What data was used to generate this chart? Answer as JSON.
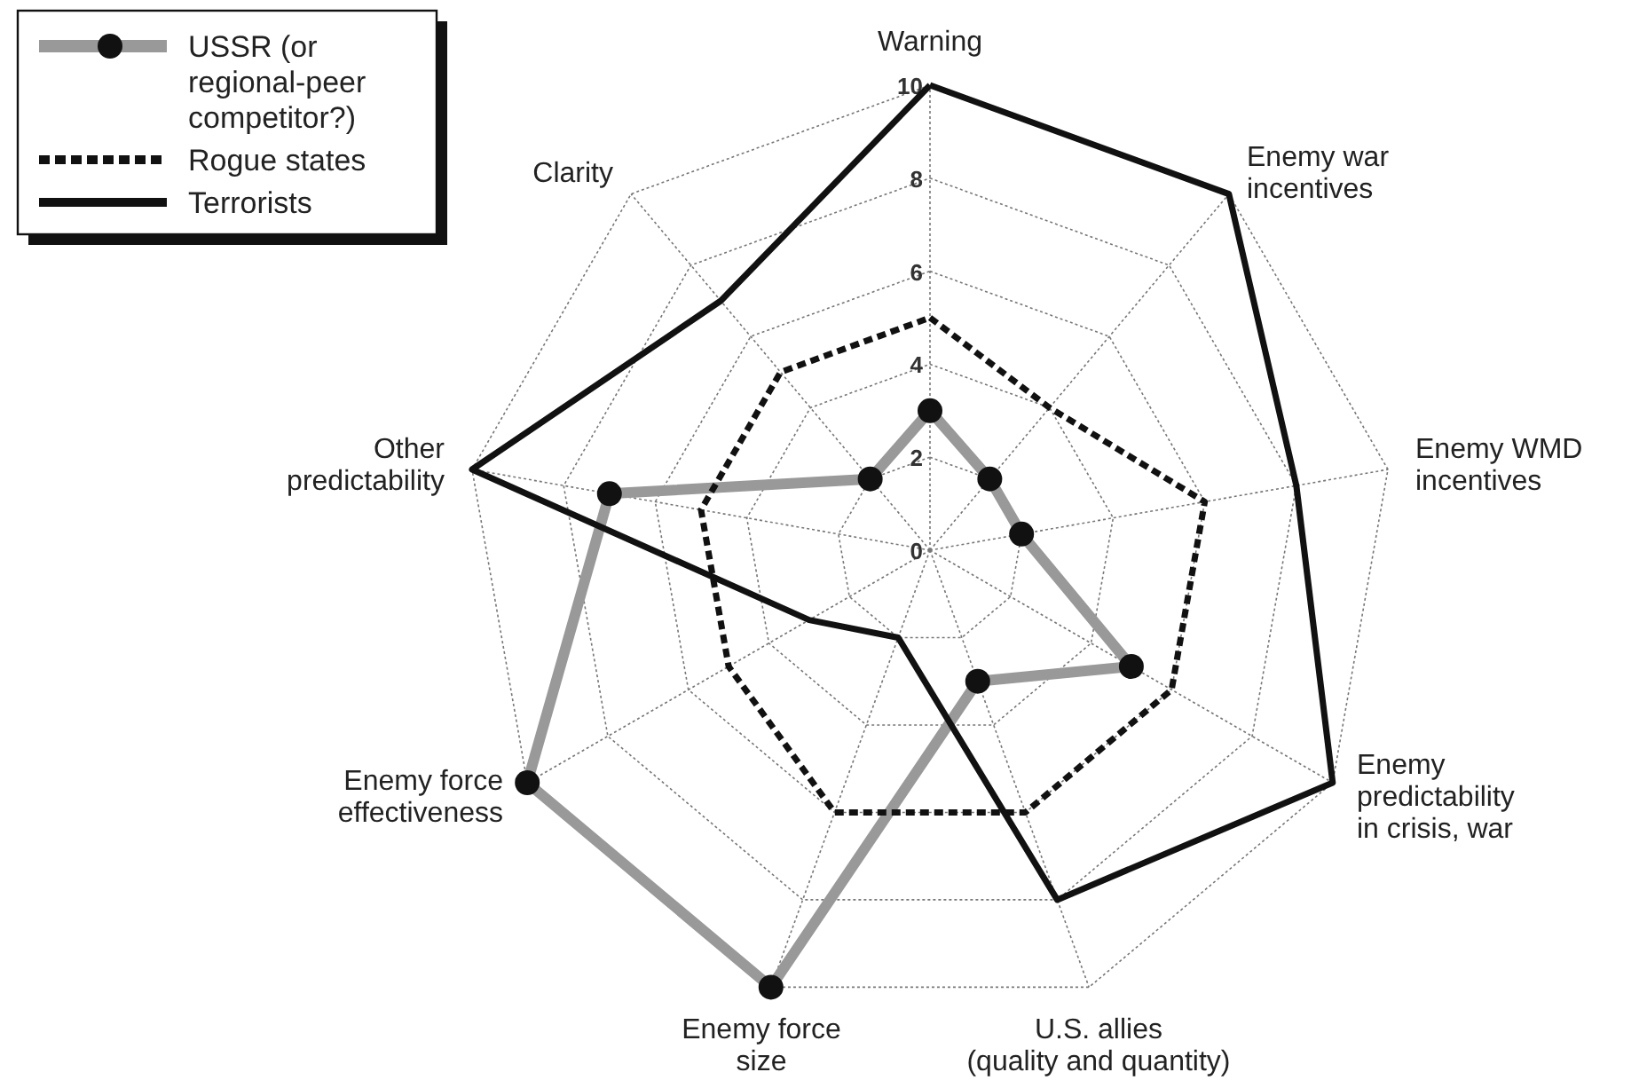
{
  "chart_data": {
    "type": "radar",
    "categories": [
      "Warning",
      "Enemy war incentives",
      "Enemy WMD incentives",
      "Enemy predictability in crisis, war",
      "U.S. allies (quality and quantity)",
      "Enemy force size",
      "Enemy force effectiveness",
      "Other predictability",
      "Clarity"
    ],
    "series": [
      {
        "name": "USSR (or regional-peer competitor?)",
        "color": "#999999",
        "marker": "circle",
        "line_style": "solid",
        "values": [
          3,
          2,
          2,
          5,
          3,
          10,
          10,
          7,
          2
        ]
      },
      {
        "name": "Rogue states",
        "color": "#111111",
        "marker": "none",
        "line_style": "dashed",
        "values": [
          5,
          4,
          6,
          6,
          6,
          6,
          5,
          5,
          5
        ]
      },
      {
        "name": "Terrorists",
        "color": "#111111",
        "marker": "none",
        "line_style": "solid",
        "values": [
          10,
          10,
          8,
          10,
          8,
          2,
          3,
          10,
          7
        ]
      }
    ],
    "ylim": [
      0,
      10
    ],
    "yticks": [
      0,
      2,
      4,
      6,
      8,
      10
    ],
    "grid": true,
    "legend": "top left"
  }
}
